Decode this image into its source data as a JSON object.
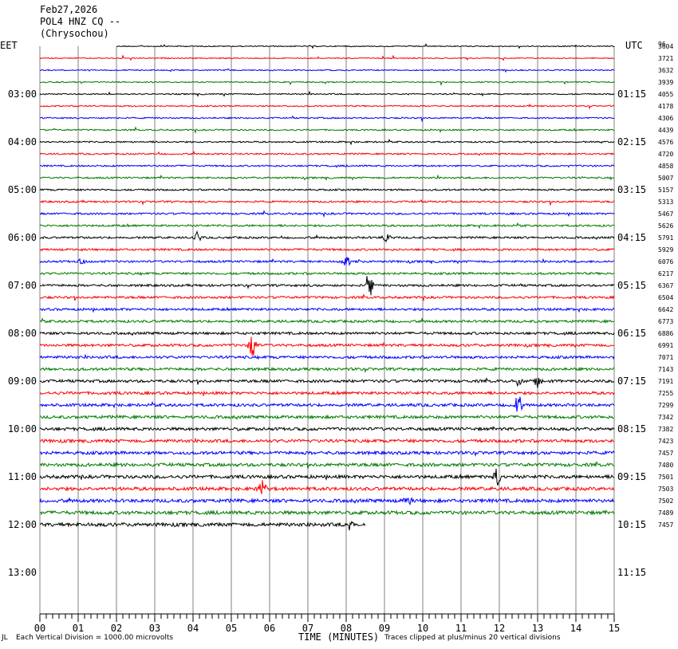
{
  "header": {
    "date": "Feb27,2026",
    "station": "POL4 HNZ CQ --",
    "location": "(Chrysochou)"
  },
  "left_zone": "EET",
  "right_zone": "UTC",
  "count_header": "96",
  "footer": {
    "left_mark": "JL",
    "vertical_note": "Each Vertical Division = 1000.00 microvolts",
    "axis_title": "TIME (MINUTES)",
    "clip_note": "Traces clipped at plus/minus 20 vertical divisions"
  },
  "colors": {
    "black": "#000000",
    "red": "#ff0000",
    "blue": "#0000ff",
    "green": "#007a00",
    "grid": "#808080"
  },
  "chart_data": {
    "type": "line",
    "title": "POL4 HNZ CQ --",
    "xlabel": "TIME (MINUTES)",
    "xlim": [
      0,
      15
    ],
    "x_ticks": [
      "00",
      "01",
      "02",
      "03",
      "04",
      "05",
      "06",
      "07",
      "08",
      "09",
      "10",
      "11",
      "12",
      "13",
      "14",
      "15"
    ],
    "hour_labels_left": [
      "03:00",
      "04:00",
      "05:00",
      "06:00",
      "07:00",
      "08:00",
      "09:00",
      "10:00",
      "11:00",
      "12:00",
      "13:00"
    ],
    "hour_labels_right": [
      "01:15",
      "02:15",
      "03:15",
      "04:15",
      "05:15",
      "06:15",
      "07:15",
      "08:15",
      "09:15",
      "10:15",
      "11:15"
    ],
    "trace_colors": [
      "black",
      "red",
      "blue",
      "green"
    ],
    "trace_counts": [
      "3604",
      "3721",
      "3632",
      "3939",
      "4055",
      "4178",
      "4306",
      "4439",
      "4576",
      "4720",
      "4858",
      "5007",
      "5157",
      "5313",
      "5467",
      "5626",
      "5791",
      "5929",
      "6076",
      "6217",
      "6367",
      "6504",
      "6642",
      "6773",
      "6886",
      "6991",
      "7071",
      "7143",
      "7191",
      "7255",
      "7299",
      "7342",
      "7382",
      "7423",
      "7457",
      "7480",
      "7501",
      "7503",
      "7502",
      "7489",
      "7457"
    ],
    "first_trace_minutes": [
      2,
      15
    ],
    "last_trace_minutes": [
      0,
      8.5
    ],
    "events": [
      {
        "trace": 16,
        "minute": 4.1,
        "amp": 0.5
      },
      {
        "trace": 16,
        "minute": 9.05,
        "amp": 0.5
      },
      {
        "trace": 18,
        "minute": 1.1,
        "amp": 0.4
      },
      {
        "trace": 18,
        "minute": 8.0,
        "amp": 0.7
      },
      {
        "trace": 20,
        "minute": 8.6,
        "amp": 1.4
      },
      {
        "trace": 25,
        "minute": 5.55,
        "amp": 1.2
      },
      {
        "trace": 28,
        "minute": 13.0,
        "amp": 0.6
      },
      {
        "trace": 28,
        "minute": 12.5,
        "amp": 0.5
      },
      {
        "trace": 30,
        "minute": 12.5,
        "amp": 1.1
      },
      {
        "trace": 36,
        "minute": 11.95,
        "amp": 1.2
      },
      {
        "trace": 37,
        "minute": 5.8,
        "amp": 0.9
      },
      {
        "trace": 38,
        "minute": 9.6,
        "amp": 0.6
      },
      {
        "trace": 40,
        "minute": 8.1,
        "amp": 0.6
      }
    ]
  }
}
